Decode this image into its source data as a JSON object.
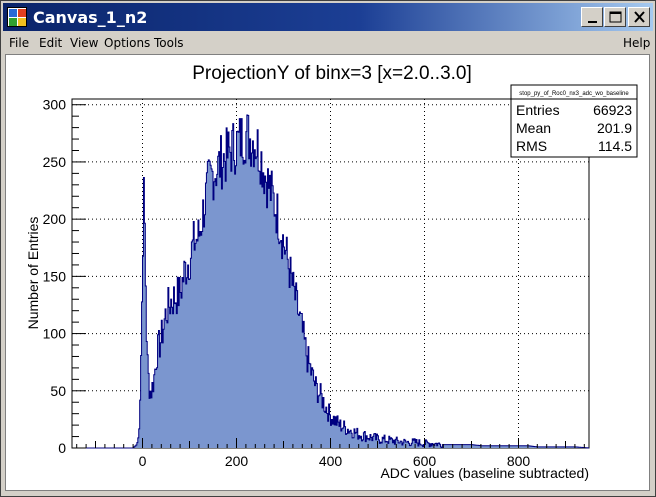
{
  "window": {
    "title": "Canvas_1_n2",
    "icon": "root-canvas-icon"
  },
  "menu": {
    "file": "File",
    "edit": "Edit",
    "view": "View",
    "options": "Options",
    "tools": "Tools",
    "help": "Help"
  },
  "stats": {
    "name": "stop_py_of_Roc0_nx3_adc_wo_baseline",
    "entries_label": "Entries",
    "entries_value": "66923",
    "mean_label": "Mean",
    "mean_value": "201.9",
    "rms_label": "RMS",
    "rms_value": "114.5"
  },
  "colors": {
    "fill": "#7b96cf",
    "line": "#000080",
    "title_bar": "#0a246a"
  },
  "chart_data": {
    "type": "area",
    "title": "ProjectionY of binx=3 [x=2.0..3.0]",
    "xlabel": "ADC values (baseline subtracted)",
    "ylabel": "Number of Entries",
    "xlim": [
      -150,
      950
    ],
    "ylim": [
      0,
      305
    ],
    "xticks": [
      0,
      200,
      400,
      600,
      800
    ],
    "yticks": [
      0,
      50,
      100,
      150,
      200,
      250,
      300
    ],
    "grid": true,
    "legend": "top-right",
    "x": [
      -150,
      -20,
      -12,
      -8,
      -4,
      0,
      2,
      4,
      6,
      8,
      10,
      14,
      18,
      22,
      26,
      30,
      40,
      50,
      60,
      70,
      80,
      90,
      100,
      110,
      120,
      130,
      140,
      150,
      160,
      170,
      180,
      190,
      200,
      210,
      220,
      230,
      240,
      250,
      260,
      270,
      280,
      290,
      300,
      310,
      320,
      330,
      340,
      350,
      360,
      370,
      380,
      390,
      400,
      420,
      440,
      460,
      480,
      500,
      520,
      540,
      560,
      580,
      600,
      620,
      640,
      660,
      680,
      700,
      720,
      740,
      760,
      780,
      800,
      820,
      840,
      860,
      880,
      900,
      920,
      950
    ],
    "y": [
      0,
      0,
      3,
      10,
      60,
      150,
      222,
      215,
      170,
      120,
      80,
      55,
      48,
      55,
      65,
      82,
      95,
      118,
      128,
      132,
      135,
      155,
      165,
      180,
      185,
      208,
      230,
      240,
      245,
      252,
      255,
      262,
      265,
      270,
      275,
      270,
      268,
      258,
      240,
      228,
      215,
      200,
      180,
      162,
      140,
      122,
      102,
      80,
      65,
      52,
      45,
      36,
      28,
      20,
      16,
      12,
      10,
      8,
      7,
      6,
      5,
      5,
      4,
      4,
      3,
      3,
      3,
      3,
      2,
      2,
      2,
      2,
      2,
      2,
      1,
      1,
      1,
      1,
      1,
      0
    ]
  }
}
